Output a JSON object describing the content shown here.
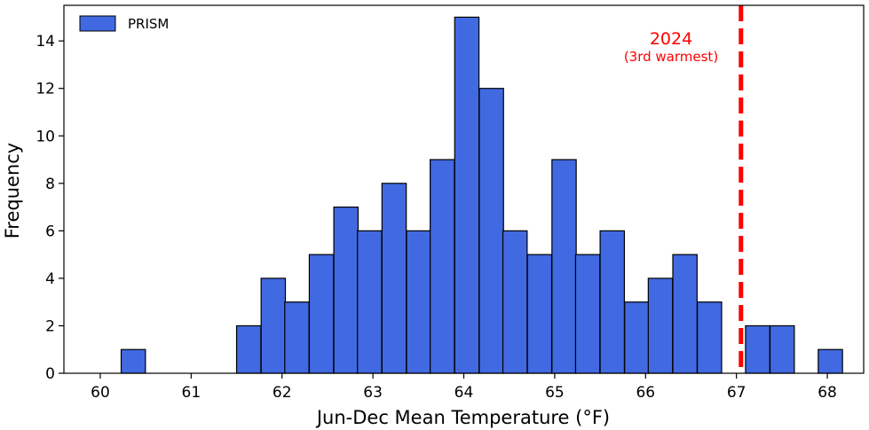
{
  "chart_data": {
    "type": "bar",
    "subtype": "histogram",
    "xlabel": "Jun-Dec Mean Temperature (°F)",
    "ylabel": "Frequency",
    "xlim": [
      59.6,
      68.4
    ],
    "ylim": [
      0,
      15.5
    ],
    "x_ticks": [
      60,
      61,
      62,
      63,
      64,
      65,
      66,
      67,
      68
    ],
    "y_ticks": [
      0,
      2,
      4,
      6,
      8,
      10,
      12,
      14
    ],
    "bin_width": 0.267,
    "series": [
      {
        "name": "PRISM",
        "color": "#4169E1",
        "edge_color": "#000000",
        "bin_left_edges": [
          60.23,
          61.5,
          61.77,
          62.03,
          62.3,
          62.57,
          62.83,
          63.1,
          63.37,
          63.63,
          63.9,
          64.17,
          64.43,
          64.7,
          64.97,
          65.23,
          65.5,
          65.77,
          66.03,
          66.3,
          66.57,
          67.1,
          67.37,
          67.9
        ],
        "values": [
          1,
          2,
          4,
          3,
          5,
          7,
          6,
          8,
          6,
          9,
          15,
          12,
          6,
          5,
          9,
          5,
          6,
          3,
          4,
          5,
          3,
          2,
          2,
          1
        ]
      }
    ],
    "legend": {
      "position": "top-left",
      "entries": [
        "PRISM"
      ]
    },
    "annotations": [
      {
        "type": "vline",
        "x": 67.05,
        "color": "#FF0000",
        "style": "dashed",
        "label": "2024",
        "sublabel": "(3rd warmest)"
      }
    ],
    "grid": false
  }
}
